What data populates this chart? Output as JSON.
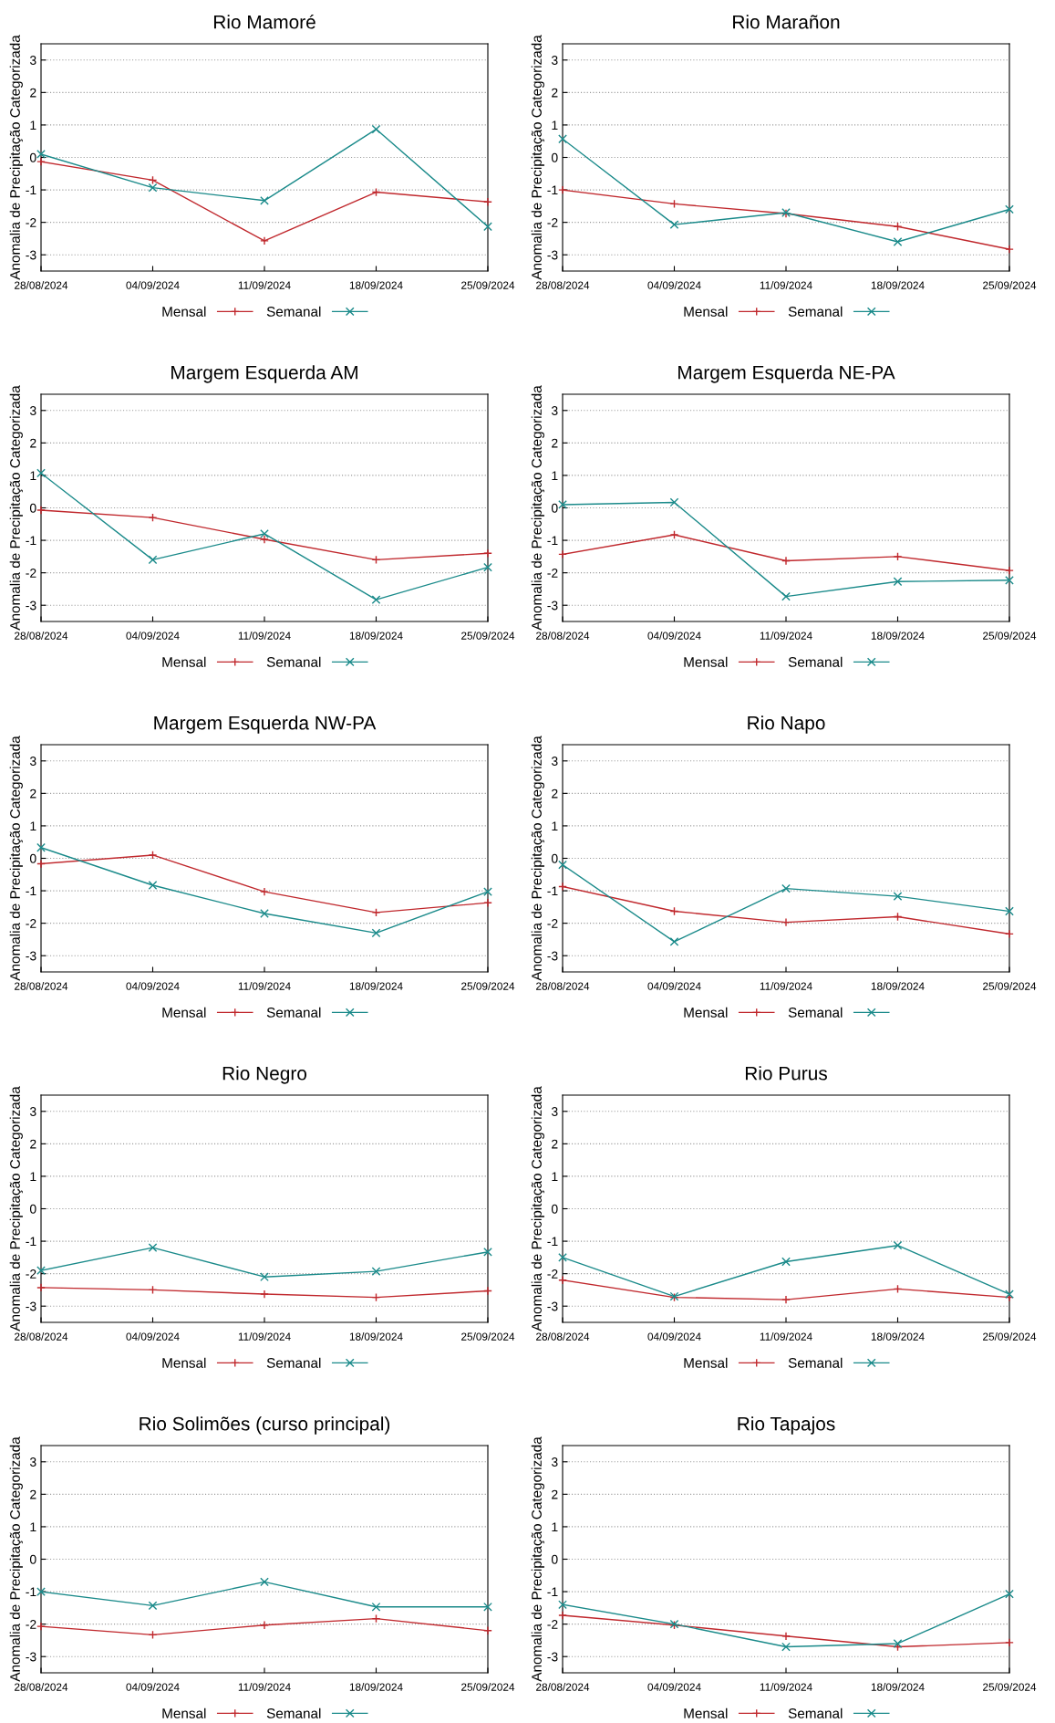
{
  "chart_data": [
    {
      "type": "line",
      "title": "Rio Mamoré",
      "ylabel": "Anomalia de Precipitação Categorizada",
      "categories": [
        "28/08/2024",
        "04/09/2024",
        "11/09/2024",
        "18/09/2024",
        "25/09/2024"
      ],
      "ylim": [
        -3.5,
        3.5
      ],
      "yticks": [
        -3,
        -2,
        -1,
        0,
        1,
        2,
        3
      ],
      "grid": "y",
      "legend": "bottom",
      "series": [
        {
          "name": "Mensal",
          "color": "#c0282d",
          "marker": "plus",
          "values": [
            -0.13,
            -0.7,
            -2.57,
            -1.07,
            -1.37
          ]
        },
        {
          "name": "Semanal",
          "color": "#1a8a8a",
          "marker": "cross",
          "values": [
            0.1,
            -0.93,
            -1.33,
            0.87,
            -2.13
          ]
        }
      ]
    },
    {
      "type": "line",
      "title": "Rio Marañon",
      "ylabel": "Anomalia de Precipitação Categorizada",
      "categories": [
        "28/08/2024",
        "04/09/2024",
        "11/09/2024",
        "18/09/2024",
        "25/09/2024"
      ],
      "ylim": [
        -3.5,
        3.5
      ],
      "yticks": [
        -3,
        -2,
        -1,
        0,
        1,
        2,
        3
      ],
      "grid": "y",
      "legend": "bottom",
      "series": [
        {
          "name": "Mensal",
          "color": "#c0282d",
          "marker": "plus",
          "values": [
            -1.0,
            -1.43,
            -1.73,
            -2.13,
            -2.83
          ]
        },
        {
          "name": "Semanal",
          "color": "#1a8a8a",
          "marker": "cross",
          "values": [
            0.57,
            -2.07,
            -1.7,
            -2.6,
            -1.6
          ]
        }
      ]
    },
    {
      "type": "line",
      "title": "Margem Esquerda AM",
      "ylabel": "Anomalia de Precipitação Categorizada",
      "categories": [
        "28/08/2024",
        "04/09/2024",
        "11/09/2024",
        "18/09/2024",
        "25/09/2024"
      ],
      "ylim": [
        -3.5,
        3.5
      ],
      "yticks": [
        -3,
        -2,
        -1,
        0,
        1,
        2,
        3
      ],
      "grid": "y",
      "legend": "bottom",
      "series": [
        {
          "name": "Mensal",
          "color": "#c0282d",
          "marker": "plus",
          "values": [
            -0.07,
            -0.3,
            -0.97,
            -1.6,
            -1.4
          ]
        },
        {
          "name": "Semanal",
          "color": "#1a8a8a",
          "marker": "cross",
          "values": [
            1.07,
            -1.6,
            -0.8,
            -2.83,
            -1.83
          ]
        }
      ]
    },
    {
      "type": "line",
      "title": "Margem Esquerda NE-PA",
      "ylabel": "Anomalia de Precipitação Categorizada",
      "categories": [
        "28/08/2024",
        "04/09/2024",
        "11/09/2024",
        "18/09/2024",
        "25/09/2024"
      ],
      "ylim": [
        -3.5,
        3.5
      ],
      "yticks": [
        -3,
        -2,
        -1,
        0,
        1,
        2,
        3
      ],
      "grid": "y",
      "legend": "bottom",
      "series": [
        {
          "name": "Mensal",
          "color": "#c0282d",
          "marker": "plus",
          "values": [
            -1.43,
            -0.83,
            -1.63,
            -1.5,
            -1.93
          ]
        },
        {
          "name": "Semanal",
          "color": "#1a8a8a",
          "marker": "cross",
          "values": [
            0.1,
            0.17,
            -2.73,
            -2.27,
            -2.23
          ]
        }
      ]
    },
    {
      "type": "line",
      "title": "Margem Esquerda NW-PA",
      "ylabel": "Anomalia de Precipitação Categorizada",
      "categories": [
        "28/08/2024",
        "04/09/2024",
        "11/09/2024",
        "18/09/2024",
        "25/09/2024"
      ],
      "ylim": [
        -3.5,
        3.5
      ],
      "yticks": [
        -3,
        -2,
        -1,
        0,
        1,
        2,
        3
      ],
      "grid": "y",
      "legend": "bottom",
      "series": [
        {
          "name": "Mensal",
          "color": "#c0282d",
          "marker": "plus",
          "values": [
            -0.17,
            0.1,
            -1.03,
            -1.67,
            -1.37
          ]
        },
        {
          "name": "Semanal",
          "color": "#1a8a8a",
          "marker": "cross",
          "values": [
            0.33,
            -0.83,
            -1.7,
            -2.3,
            -1.03
          ]
        }
      ]
    },
    {
      "type": "line",
      "title": "Rio Napo",
      "ylabel": "Anomalia de Precipitação Categorizada",
      "categories": [
        "28/08/2024",
        "04/09/2024",
        "11/09/2024",
        "18/09/2024",
        "25/09/2024"
      ],
      "ylim": [
        -3.5,
        3.5
      ],
      "yticks": [
        -3,
        -2,
        -1,
        0,
        1,
        2,
        3
      ],
      "grid": "y",
      "legend": "bottom",
      "series": [
        {
          "name": "Mensal",
          "color": "#c0282d",
          "marker": "plus",
          "values": [
            -0.87,
            -1.63,
            -1.97,
            -1.8,
            -2.33
          ]
        },
        {
          "name": "Semanal",
          "color": "#1a8a8a",
          "marker": "cross",
          "values": [
            -0.2,
            -2.57,
            -0.93,
            -1.17,
            -1.63
          ]
        }
      ]
    },
    {
      "type": "line",
      "title": "Rio Negro",
      "ylabel": "Anomalia de Precipitação Categorizada",
      "categories": [
        "28/08/2024",
        "04/09/2024",
        "11/09/2024",
        "18/09/2024",
        "25/09/2024"
      ],
      "ylim": [
        -3.5,
        3.5
      ],
      "yticks": [
        -3,
        -2,
        -1,
        0,
        1,
        2,
        3
      ],
      "grid": "y",
      "legend": "bottom",
      "series": [
        {
          "name": "Mensal",
          "color": "#c0282d",
          "marker": "plus",
          "values": [
            -2.43,
            -2.5,
            -2.63,
            -2.73,
            -2.53
          ]
        },
        {
          "name": "Semanal",
          "color": "#1a8a8a",
          "marker": "cross",
          "values": [
            -1.9,
            -1.2,
            -2.1,
            -1.93,
            -1.33
          ]
        }
      ]
    },
    {
      "type": "line",
      "title": "Rio Purus",
      "ylabel": "Anomalia de Precipitação Categorizada",
      "categories": [
        "28/08/2024",
        "04/09/2024",
        "11/09/2024",
        "18/09/2024",
        "25/09/2024"
      ],
      "ylim": [
        -3.5,
        3.5
      ],
      "yticks": [
        -3,
        -2,
        -1,
        0,
        1,
        2,
        3
      ],
      "grid": "y",
      "legend": "bottom",
      "series": [
        {
          "name": "Mensal",
          "color": "#c0282d",
          "marker": "plus",
          "values": [
            -2.2,
            -2.73,
            -2.8,
            -2.47,
            -2.73
          ]
        },
        {
          "name": "Semanal",
          "color": "#1a8a8a",
          "marker": "cross",
          "values": [
            -1.5,
            -2.7,
            -1.63,
            -1.13,
            -2.63
          ]
        }
      ]
    },
    {
      "type": "line",
      "title": "Rio Solimões (curso principal)",
      "ylabel": "Anomalia de Precipitação Categorizada",
      "categories": [
        "28/08/2024",
        "04/09/2024",
        "11/09/2024",
        "18/09/2024",
        "25/09/2024"
      ],
      "ylim": [
        -3.5,
        3.5
      ],
      "yticks": [
        -3,
        -2,
        -1,
        0,
        1,
        2,
        3
      ],
      "grid": "y",
      "legend": "bottom",
      "series": [
        {
          "name": "Mensal",
          "color": "#c0282d",
          "marker": "plus",
          "values": [
            -2.07,
            -2.33,
            -2.03,
            -1.83,
            -2.2
          ]
        },
        {
          "name": "Semanal",
          "color": "#1a8a8a",
          "marker": "cross",
          "values": [
            -1.0,
            -1.43,
            -0.7,
            -1.47,
            -1.47
          ]
        }
      ]
    },
    {
      "type": "line",
      "title": "Rio Tapajos",
      "ylabel": "Anomalia de Precipitação Categorizada",
      "categories": [
        "28/08/2024",
        "04/09/2024",
        "11/09/2024",
        "18/09/2024",
        "25/09/2024"
      ],
      "ylim": [
        -3.5,
        3.5
      ],
      "yticks": [
        -3,
        -2,
        -1,
        0,
        1,
        2,
        3
      ],
      "grid": "y",
      "legend": "bottom",
      "series": [
        {
          "name": "Mensal",
          "color": "#c0282d",
          "marker": "plus",
          "values": [
            -1.73,
            -2.03,
            -2.37,
            -2.7,
            -2.57
          ]
        },
        {
          "name": "Semanal",
          "color": "#1a8a8a",
          "marker": "cross",
          "values": [
            -1.4,
            -2.0,
            -2.7,
            -2.6,
            -1.07
          ]
        }
      ]
    }
  ]
}
